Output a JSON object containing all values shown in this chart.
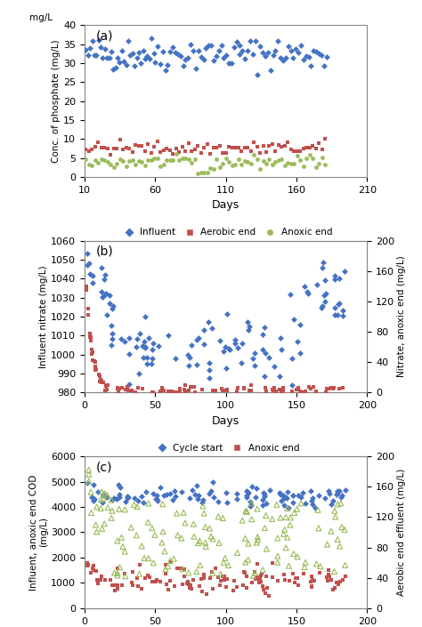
{
  "panel_a": {
    "title": "(a)",
    "ylabel": "Conc. of phosphate (mg/L)",
    "ylabel_top": "mg/L",
    "xlabel": "Days",
    "xlim": [
      10,
      210
    ],
    "ylim": [
      0,
      40
    ],
    "xticks": [
      10,
      60,
      110,
      160,
      210
    ],
    "yticks": [
      0,
      5,
      10,
      15,
      20,
      25,
      30,
      35,
      40
    ],
    "legend": [
      "Influent",
      "Aerobic end",
      "Anoxic end"
    ],
    "colors": [
      "#4472C4",
      "#C0504D",
      "#9BBB59"
    ],
    "markers": [
      "D",
      "s",
      "o"
    ]
  },
  "panel_b": {
    "title": "(b)",
    "ylabel_left": "Influent nitrate (mg/L)",
    "ylabel_right": "Nitrate, anoxic end (mg/L)",
    "xlabel": "Days",
    "xlim": [
      0,
      200
    ],
    "ylim_left": [
      980,
      1060
    ],
    "ylim_right": [
      0,
      200
    ],
    "xticks": [
      0,
      50,
      100,
      150,
      200
    ],
    "yticks_left": [
      980,
      990,
      1000,
      1010,
      1020,
      1030,
      1040,
      1050,
      1060
    ],
    "yticks_right": [
      0,
      40,
      80,
      120,
      160,
      200
    ],
    "legend": [
      "Cycle start",
      "Anoxic end"
    ],
    "colors": [
      "#4472C4",
      "#C0504D"
    ],
    "markers": [
      "D",
      "s"
    ]
  },
  "panel_c": {
    "title": "(c)",
    "ylabel_left": "Influent, anoxic end COD\n(mg/L)",
    "ylabel_right": "Aerobic end effluent (mg/L)",
    "xlabel": "Days",
    "xlim": [
      0,
      200
    ],
    "ylim_left": [
      0,
      6000
    ],
    "ylim_right": [
      0,
      200
    ],
    "xticks": [
      0,
      50,
      100,
      150,
      200
    ],
    "yticks_left": [
      0,
      1000,
      2000,
      3000,
      4000,
      5000,
      6000
    ],
    "yticks_right": [
      0,
      40,
      80,
      120,
      160,
      200
    ],
    "legend": [
      "Influent",
      "Anoxic end",
      "Aerobic end"
    ],
    "colors": [
      "#4472C4",
      "#C0504D",
      "#9BBB59"
    ],
    "markers": [
      "D",
      "s",
      "^"
    ]
  }
}
